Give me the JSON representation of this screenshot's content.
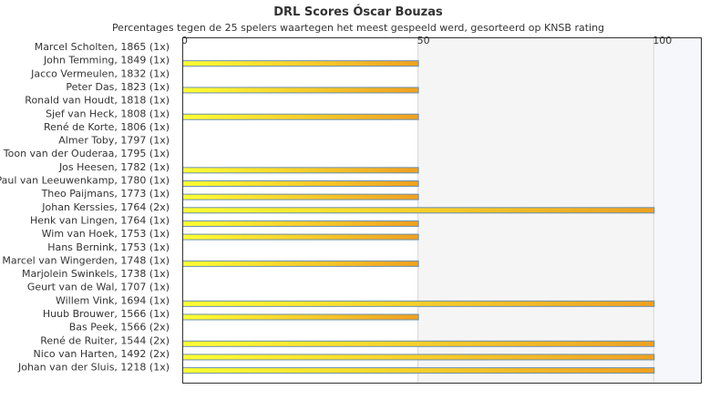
{
  "chart_data": {
    "type": "bar",
    "orientation": "horizontal",
    "title": "DRL Scores Óscar Bouzas",
    "subtitle": "Percentages tegen de 25 spelers waartegen het meest gespeeld werd, gesorteerd op KNSB rating",
    "categories": [
      "Marcel Scholten, 1865 (1x)",
      "John Temming, 1849 (1x)",
      "Jacco Vermeulen, 1832 (1x)",
      "Peter Das, 1823 (1x)",
      "Ronald van Houdt, 1818 (1x)",
      "Sjef van Heck, 1808 (1x)",
      "René de Korte, 1806 (1x)",
      "Almer Toby, 1797 (1x)",
      "Toon van der Ouderaa, 1795 (1x)",
      "Jos Heesen, 1782 (1x)",
      "Paul van Leeuwenkamp, 1780 (1x)",
      "Theo Paijmans, 1773 (1x)",
      "Johan Kerssies, 1764 (2x)",
      "Henk van Lingen, 1764 (1x)",
      "Wim van Hoek, 1753 (1x)",
      "Hans Bernink, 1753 (1x)",
      "Marcel van Wingerden, 1748 (1x)",
      "Marjolein Swinkels, 1738 (1x)",
      "Geurt van de Wal, 1707 (1x)",
      "Willem Vink, 1694 (1x)",
      "Huub Brouwer, 1566 (1x)",
      "Bas Peek, 1566 (2x)",
      "René de Ruiter, 1544 (2x)",
      "Nico van Harten, 1492 (2x)",
      "Johan van der Sluis, 1218 (1x)"
    ],
    "values": [
      0,
      50,
      0,
      50,
      0,
      50,
      0,
      0,
      0,
      50,
      50,
      50,
      100,
      50,
      50,
      0,
      50,
      0,
      0,
      100,
      50,
      0,
      100,
      100,
      100
    ],
    "xticks": [
      "0",
      "50",
      "100"
    ],
    "xlim": [
      0,
      110
    ],
    "grid": true,
    "colors": {
      "bar_light": "#ffff33",
      "bar_dark": "#f0a020",
      "bar_stroke": "#6a8fb0",
      "band_a": "#ffffff",
      "band_b": "#f5f5f5",
      "band_c": "#f5f7fa",
      "axis": "#333333",
      "grid": "#d8d8d8"
    }
  }
}
